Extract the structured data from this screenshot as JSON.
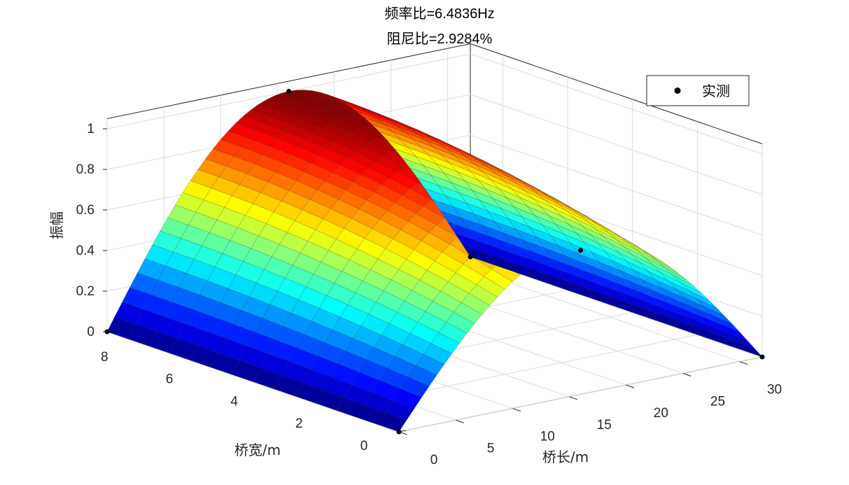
{
  "chart_data": {
    "type": "surface",
    "title_lines": [
      "频率比=6.4836Hz",
      "阻尼比=2.9284%"
    ],
    "xlabel": "桥长/m",
    "ylabel": "桥宽/m",
    "zlabel": "振幅",
    "xlim": [
      0,
      32
    ],
    "ylim": [
      0,
      9
    ],
    "zlim": [
      0,
      1.05
    ],
    "xticks": [
      "0",
      "5",
      "10",
      "15",
      "20",
      "25",
      "30"
    ],
    "yticks": [
      "0",
      "2",
      "4",
      "6",
      "8"
    ],
    "zticks": [
      "0",
      "0.2",
      "0.4",
      "0.6",
      "0.8",
      "1"
    ],
    "surface_model": "amplitude ≈ sin(π·x/32) with slight lateral variation; peak ≈ 1.0",
    "colormap": "jet",
    "grid": true,
    "legend": {
      "position": "top-right",
      "entries": [
        "实测"
      ]
    },
    "series": [
      {
        "name": "实测",
        "marker": "filled-circle",
        "color": "#000000",
        "points": [
          {
            "x": 0,
            "y": 0,
            "z": 0
          },
          {
            "x": 0,
            "y": 9,
            "z": 0
          },
          {
            "x": 16,
            "y": 0,
            "z": 0.71
          },
          {
            "x": 16,
            "y": 9,
            "z": 1.0
          },
          {
            "x": 32,
            "y": 0,
            "z": 0
          },
          {
            "x": 32,
            "y": 9,
            "z": 0
          }
        ]
      }
    ]
  }
}
